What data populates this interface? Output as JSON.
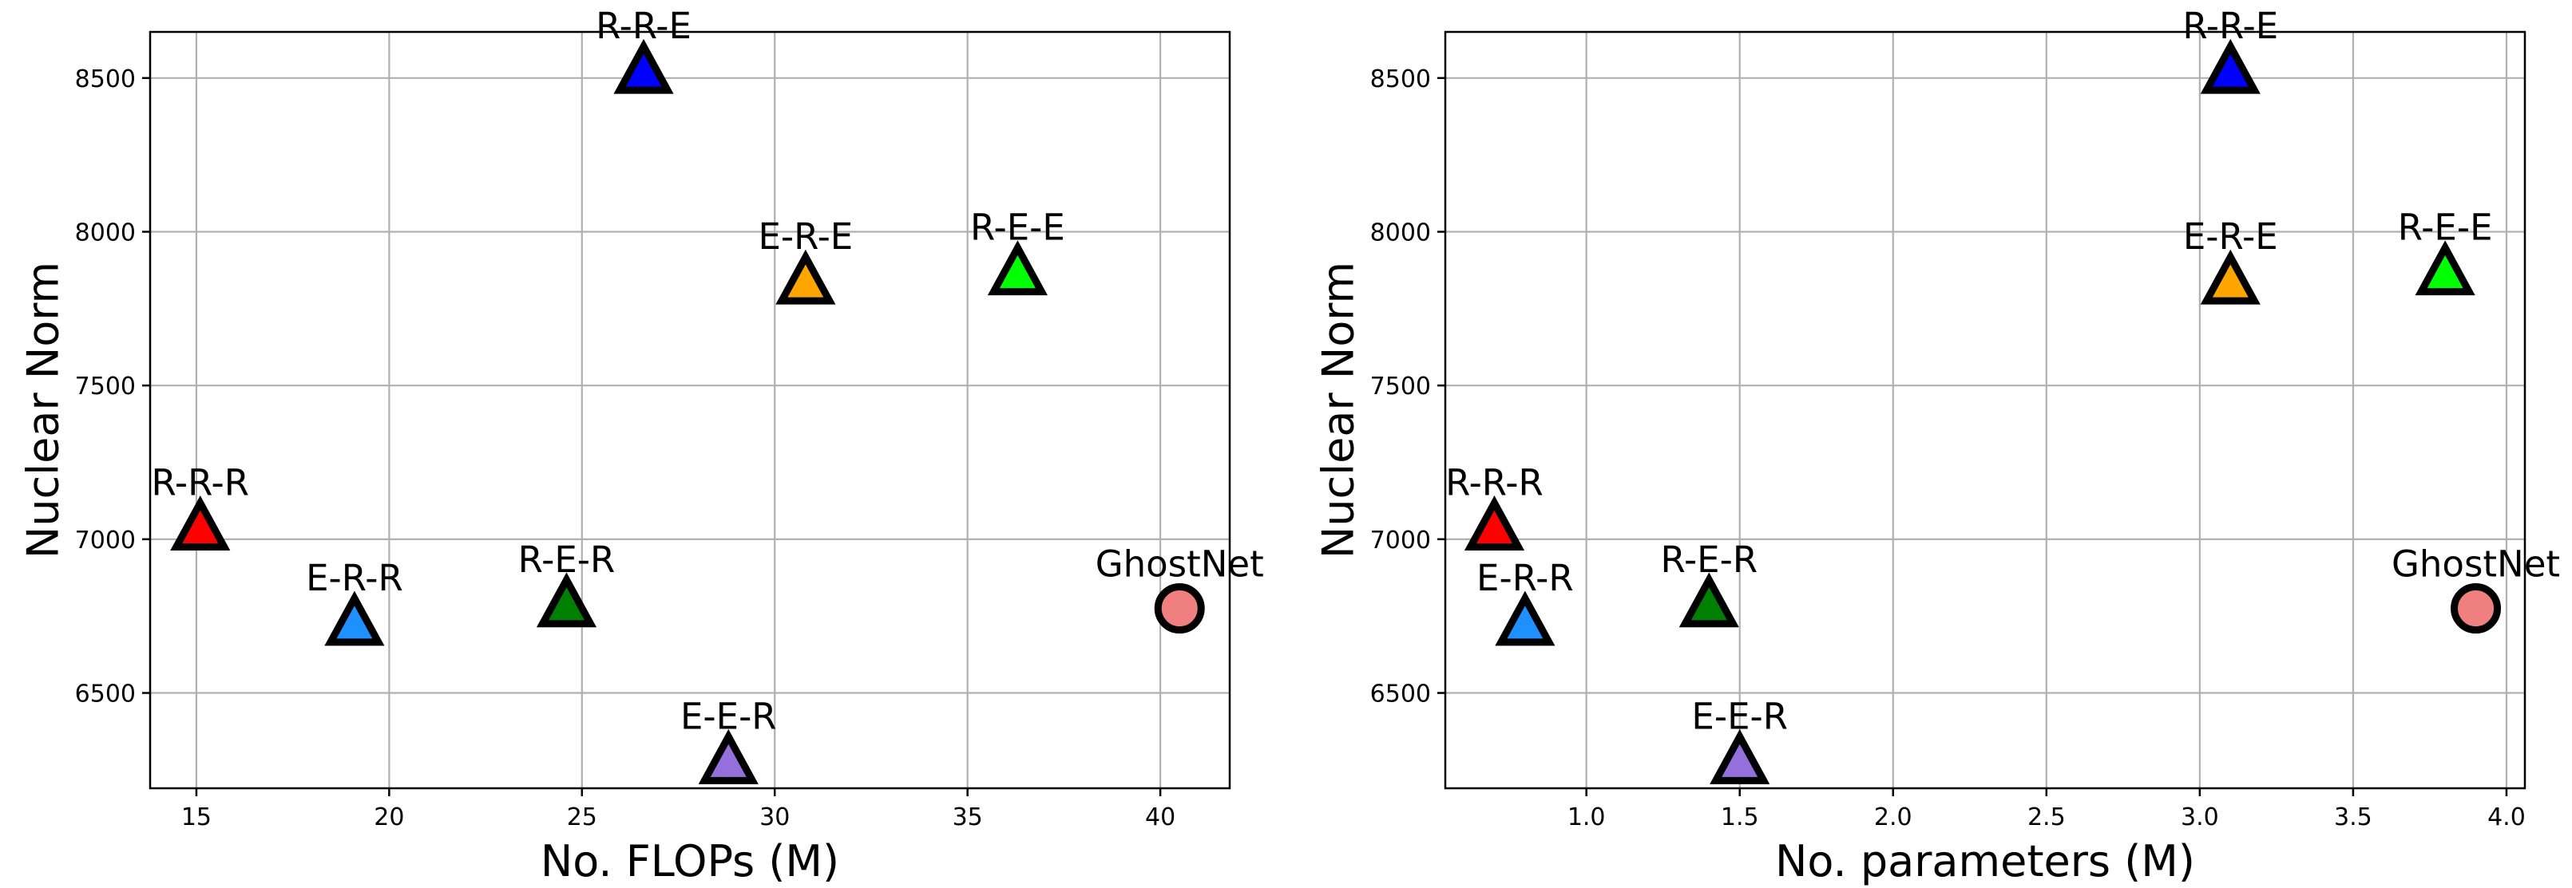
{
  "chart_data": [
    {
      "type": "scatter",
      "xlabel": "No. FLOPs (M)",
      "ylabel": "Nuclear Norm",
      "xlim": [
        13.8,
        41.8
      ],
      "ylim": [
        6190,
        8650
      ],
      "xticks": [
        15,
        20,
        25,
        30,
        35,
        40
      ],
      "yticks": [
        6500,
        7000,
        7500,
        8000,
        8500
      ],
      "xtick_labels": [
        "15",
        "20",
        "25",
        "30",
        "35",
        "40"
      ],
      "ytick_labels": [
        "6500",
        "7000",
        "7500",
        "8000",
        "8500"
      ],
      "grid": true,
      "points": [
        {
          "label": "R-R-E",
          "x": 26.6,
          "y": 8525,
          "color": "#0000ff",
          "marker": "triangle"
        },
        {
          "label": "E-R-E",
          "x": 30.8,
          "y": 7840,
          "color": "#ffa500",
          "marker": "triangle"
        },
        {
          "label": "R-E-E",
          "x": 36.3,
          "y": 7870,
          "color": "#00ff00",
          "marker": "triangle"
        },
        {
          "label": "R-R-R",
          "x": 15.1,
          "y": 7040,
          "color": "#ff0000",
          "marker": "triangle"
        },
        {
          "label": "E-R-R",
          "x": 19.1,
          "y": 6730,
          "color": "#1e90ff",
          "marker": "triangle"
        },
        {
          "label": "R-E-R",
          "x": 24.6,
          "y": 6790,
          "color": "#008000",
          "marker": "triangle"
        },
        {
          "label": "E-E-R",
          "x": 28.8,
          "y": 6280,
          "color": "#9370db",
          "marker": "triangle"
        },
        {
          "label": "GhostNet",
          "x": 40.5,
          "y": 6775,
          "color": "#f08080",
          "marker": "circle"
        }
      ]
    },
    {
      "type": "scatter",
      "xlabel": "No. parameters (M)",
      "ylabel": "Nuclear Norm",
      "xlim": [
        0.54,
        4.06
      ],
      "ylim": [
        6190,
        8650
      ],
      "xticks": [
        1.0,
        1.5,
        2.0,
        2.5,
        3.0,
        3.5,
        4.0
      ],
      "yticks": [
        6500,
        7000,
        7500,
        8000,
        8500
      ],
      "xtick_labels": [
        "1.0",
        "1.5",
        "2.0",
        "2.5",
        "3.0",
        "3.5",
        "4.0"
      ],
      "ytick_labels": [
        "6500",
        "7000",
        "7500",
        "8000",
        "8500"
      ],
      "grid": true,
      "points": [
        {
          "label": "R-R-E",
          "x": 3.1,
          "y": 8525,
          "color": "#0000ff",
          "marker": "triangle"
        },
        {
          "label": "E-R-E",
          "x": 3.1,
          "y": 7840,
          "color": "#ffa500",
          "marker": "triangle"
        },
        {
          "label": "R-E-E",
          "x": 3.8,
          "y": 7870,
          "color": "#00ff00",
          "marker": "triangle"
        },
        {
          "label": "R-R-R",
          "x": 0.7,
          "y": 7040,
          "color": "#ff0000",
          "marker": "triangle"
        },
        {
          "label": "E-R-R",
          "x": 0.8,
          "y": 6730,
          "color": "#1e90ff",
          "marker": "triangle"
        },
        {
          "label": "R-E-R",
          "x": 1.4,
          "y": 6790,
          "color": "#008000",
          "marker": "triangle"
        },
        {
          "label": "E-E-R",
          "x": 1.5,
          "y": 6280,
          "color": "#9370db",
          "marker": "triangle"
        },
        {
          "label": "GhostNet",
          "x": 3.9,
          "y": 6775,
          "color": "#f08080",
          "marker": "circle"
        }
      ]
    }
  ]
}
